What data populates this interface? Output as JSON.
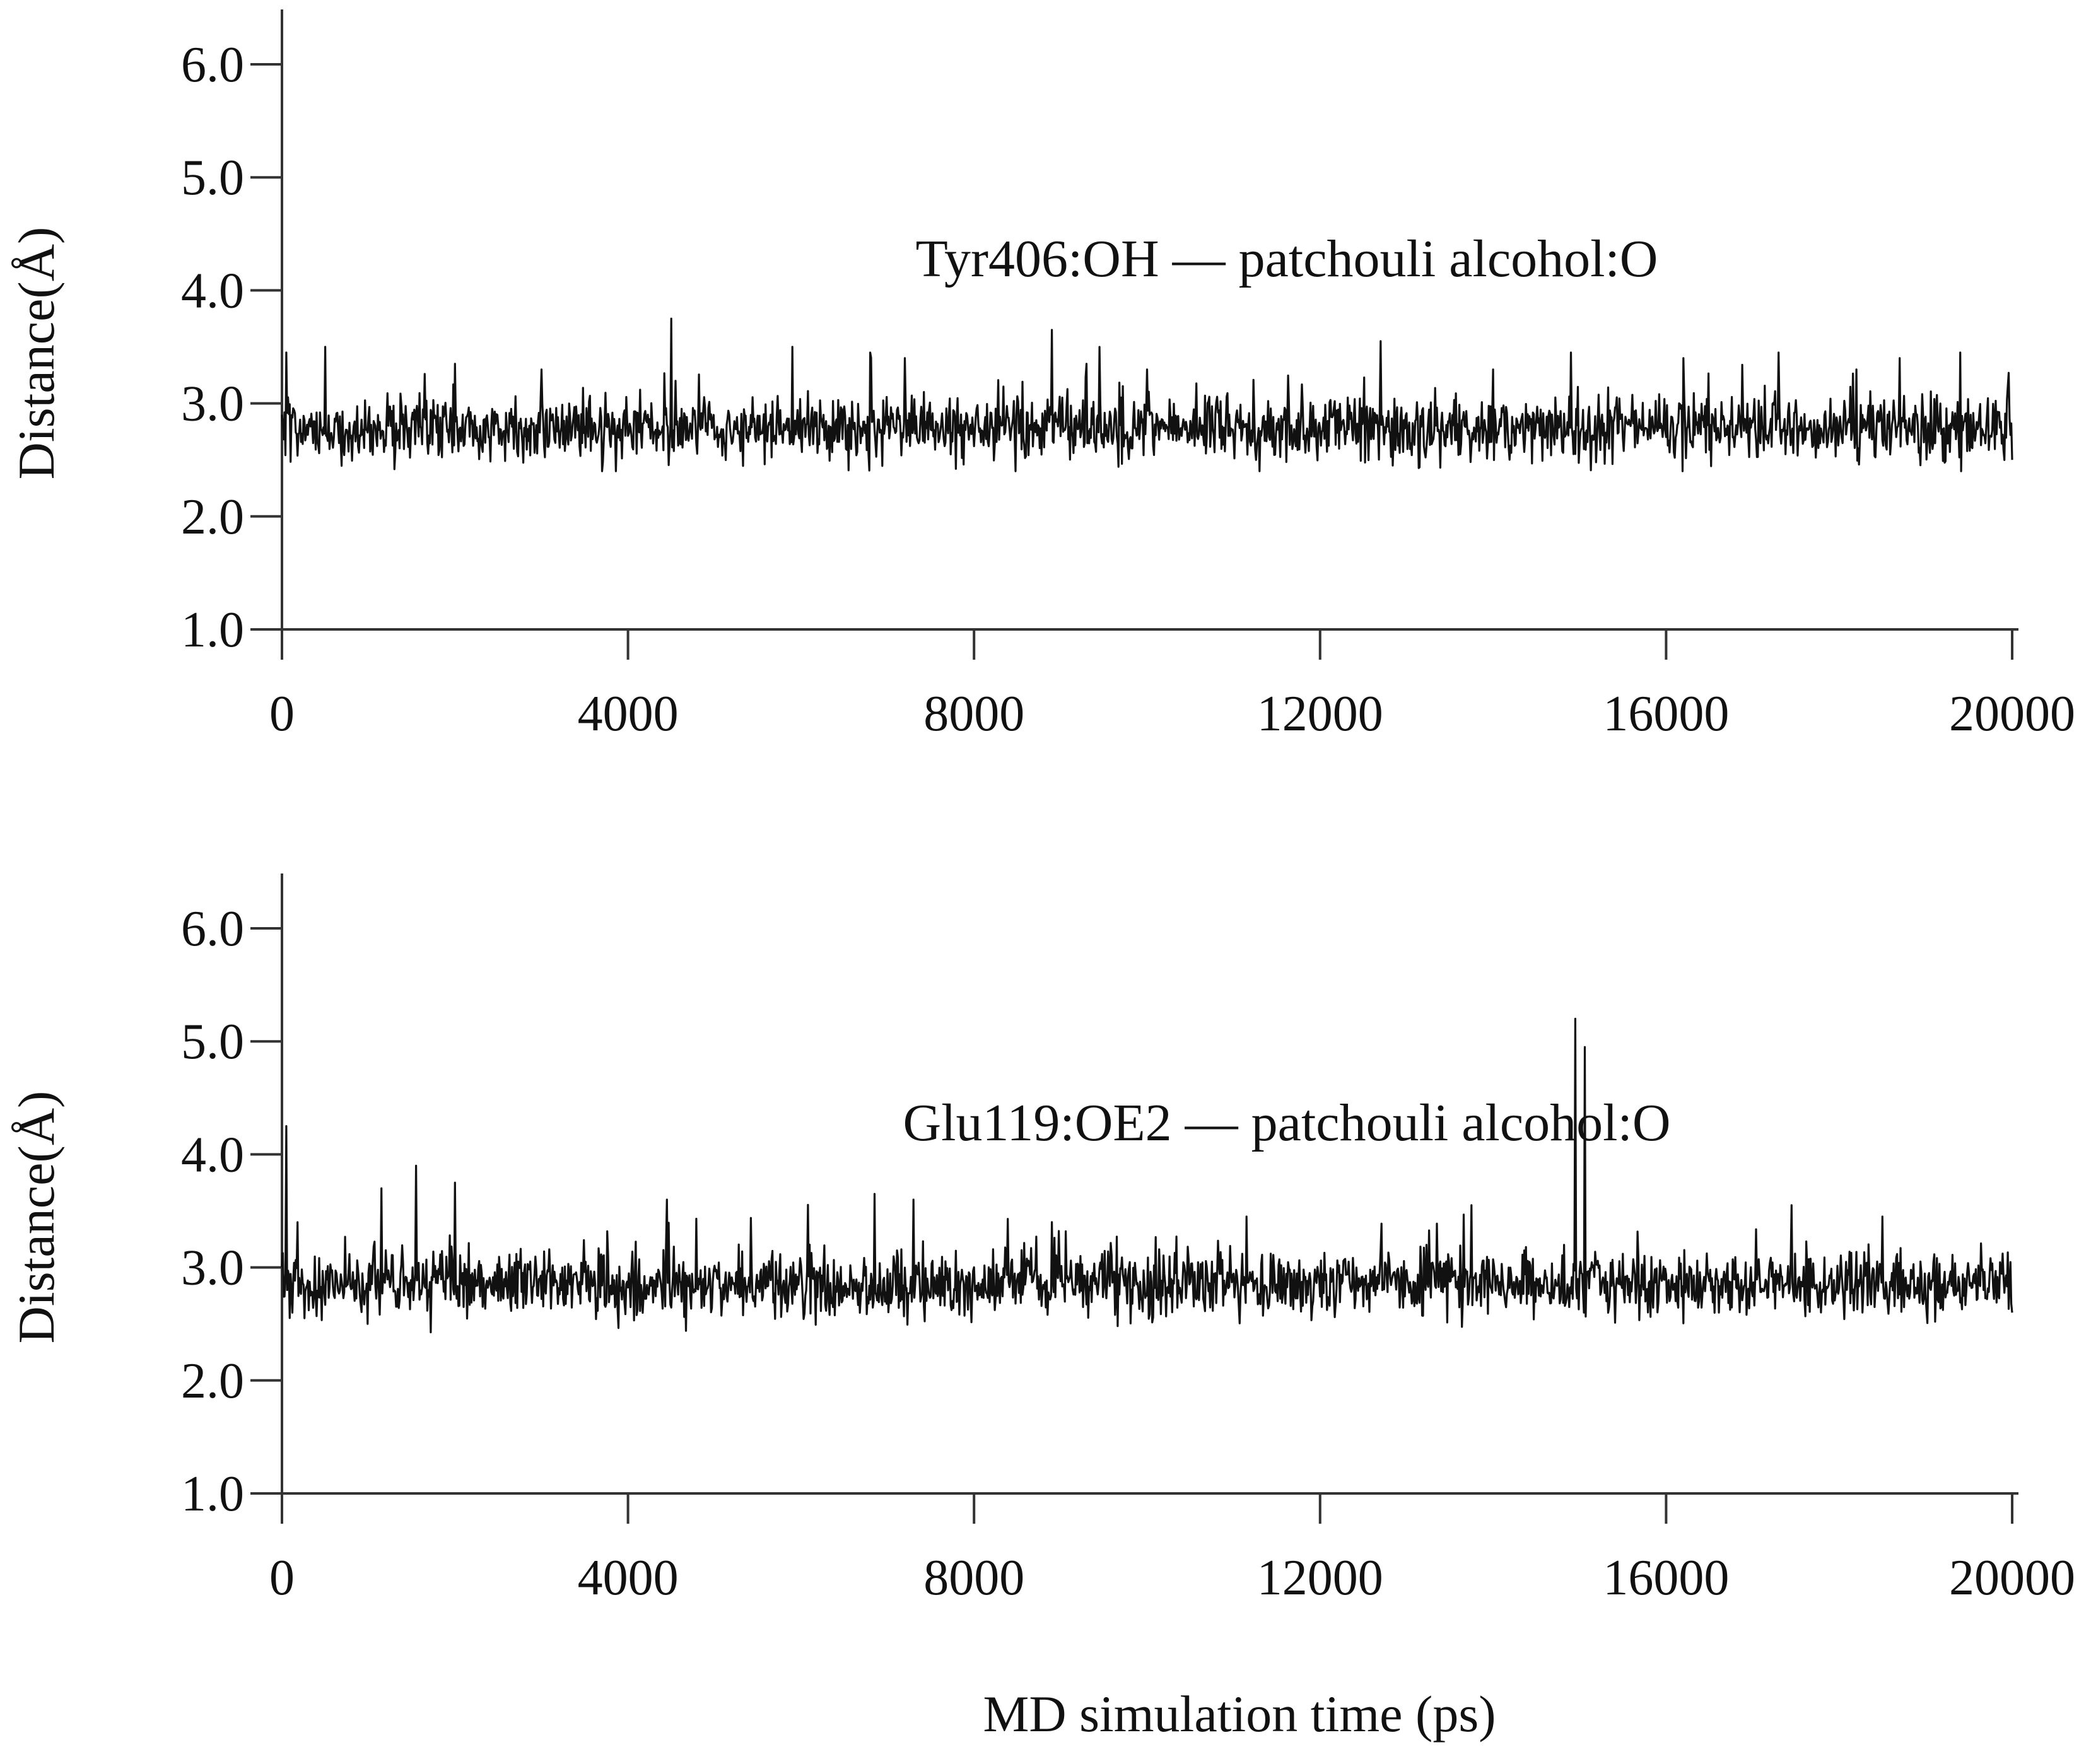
{
  "chart_data": [
    {
      "type": "line",
      "title": "",
      "annotation": "Tyr406:OH — patchouli alcohol:O",
      "ylabel": "Distance(Å)",
      "xlabel": "",
      "xlim": [
        0,
        20000
      ],
      "ylim": [
        1.0,
        6.5
      ],
      "xticks": [
        "0",
        "4000",
        "8000",
        "12000",
        "16000",
        "20000"
      ],
      "yticks": [
        "1.0",
        "2.0",
        "3.0",
        "4.0",
        "5.0",
        "6.0"
      ],
      "grid": false,
      "color": "#111111",
      "series": [
        {
          "mean": 2.78,
          "min": 2.4,
          "max": 3.75,
          "x": [
            0,
            50,
            500,
            2000,
            3000,
            4500,
            5900,
            6800,
            7200,
            8900,
            9300,
            10000,
            11300,
            12700,
            14000,
            14900,
            16200,
            17300,
            18200,
            18700,
            19400,
            20000
          ],
          "y": [
            2.9,
            3.45,
            3.5,
            3.35,
            3.3,
            3.75,
            3.5,
            3.45,
            3.4,
            3.65,
            3.35,
            3.3,
            2.4,
            3.55,
            3.3,
            3.45,
            3.4,
            3.45,
            3.3,
            3.4,
            3.45,
            2.5
          ]
        }
      ]
    },
    {
      "type": "line",
      "title": "",
      "annotation": "Glu119:OE2 — patchouli alcohol:O",
      "ylabel": "Distance(Å)",
      "xlabel": "MD simulation time (ps)",
      "xlim": [
        0,
        20000
      ],
      "ylim": [
        1.0,
        6.5
      ],
      "xticks": [
        "0",
        "4000",
        "8000",
        "12000",
        "16000",
        "20000"
      ],
      "yticks": [
        "1.0",
        "2.0",
        "3.0",
        "4.0",
        "5.0",
        "6.0"
      ],
      "grid": false,
      "color": "#111111",
      "series": [
        {
          "mean": 2.85,
          "min": 2.4,
          "max": 5.2,
          "x": [
            0,
            50,
            1150,
            1550,
            2000,
            4450,
            6850,
            7300,
            8900,
            11150,
            13750,
            14950,
            15060,
            17450,
            18500,
            20000
          ],
          "y": [
            3.0,
            4.25,
            3.7,
            3.9,
            3.75,
            3.6,
            3.65,
            3.6,
            3.4,
            3.45,
            3.55,
            5.2,
            4.95,
            3.55,
            3.45,
            2.6
          ]
        }
      ]
    }
  ]
}
